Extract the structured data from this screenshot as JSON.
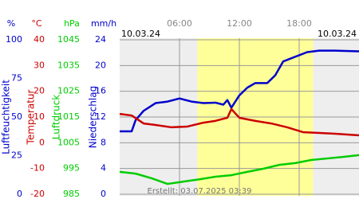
{
  "chart_data": {
    "type": "line",
    "date_left": "10.03.24",
    "date_right": "10.03.24",
    "footer": "Erstellt: 03.07.2025 03:39",
    "xlim": [
      0,
      24
    ],
    "xticks": [
      {
        "value": 6,
        "label": "06:00"
      },
      {
        "value": 12,
        "label": "12:00"
      },
      {
        "value": 18,
        "label": "18:00"
      }
    ],
    "daylight": [
      7.8,
      19.4
    ],
    "grid": true,
    "axes": [
      {
        "unit": "%",
        "label": "Luftfeuchtigkeit",
        "color": "#0000cc",
        "ylim": [
          0,
          100
        ],
        "yticks": [
          0,
          25,
          50,
          75,
          100
        ]
      },
      {
        "unit": "°C",
        "label": "Temperatur",
        "color": "#cc0000",
        "ylim": [
          -20,
          40
        ],
        "yticks": [
          -20,
          -10,
          0,
          10,
          20,
          30,
          40
        ]
      },
      {
        "unit": "hPa",
        "label": "Luftdruck",
        "color": "#00cc00",
        "ylim": [
          985,
          1045
        ],
        "yticks": [
          985,
          995,
          1005,
          1015,
          1025,
          1035,
          1045
        ]
      },
      {
        "unit": "mm/h",
        "label": "Niederschlag",
        "color": "#0000cc",
        "ylim": [
          0,
          24
        ],
        "yticks": [
          0,
          4,
          8,
          12,
          16,
          20,
          24
        ]
      }
    ],
    "series": [
      {
        "axis": 0,
        "color": "#0000cc",
        "x": [
          0,
          1.2,
          1.6,
          2.4,
          3.6,
          4.8,
          6,
          7.2,
          8.4,
          9.6,
          10.4,
          10.8,
          11.2,
          12,
          12.8,
          13.6,
          14.8,
          15.6,
          16.4,
          17.6,
          18.8,
          20,
          21.6,
          24
        ],
        "values": [
          40.7,
          40.7,
          48,
          54,
          59,
          60,
          62,
          60,
          59,
          59.3,
          58,
          61,
          56,
          64,
          69,
          72,
          72,
          77,
          86,
          89,
          92,
          93,
          93,
          92.5
        ]
      },
      {
        "axis": 1,
        "color": "#cc0000",
        "x": [
          0,
          1.2,
          2.4,
          3.6,
          5.2,
          6.8,
          8.4,
          9.6,
          10.8,
          11.2,
          12,
          13.6,
          15.2,
          16.8,
          18.4,
          20,
          21.6,
          24
        ],
        "values": [
          11.2,
          10.6,
          7.5,
          6.9,
          6.0,
          6.3,
          7.8,
          8.5,
          9.7,
          13.1,
          9.7,
          8.5,
          7.5,
          6.0,
          4.1,
          3.8,
          3.5,
          2.9
        ]
      },
      {
        "axis": 2,
        "color": "#00cc00",
        "x": [
          0,
          1.6,
          3.2,
          4.8,
          6.4,
          8,
          9.6,
          11.2,
          12.8,
          14.4,
          16,
          17.6,
          19.2,
          20.8,
          22.4,
          24
        ],
        "values": [
          993.7,
          993.0,
          991.2,
          989.0,
          989.9,
          990.8,
          991.8,
          992.4,
          993.7,
          994.9,
          996.4,
          997.1,
          998.3,
          998.9,
          999.5,
          1000.2
        ]
      }
    ]
  }
}
